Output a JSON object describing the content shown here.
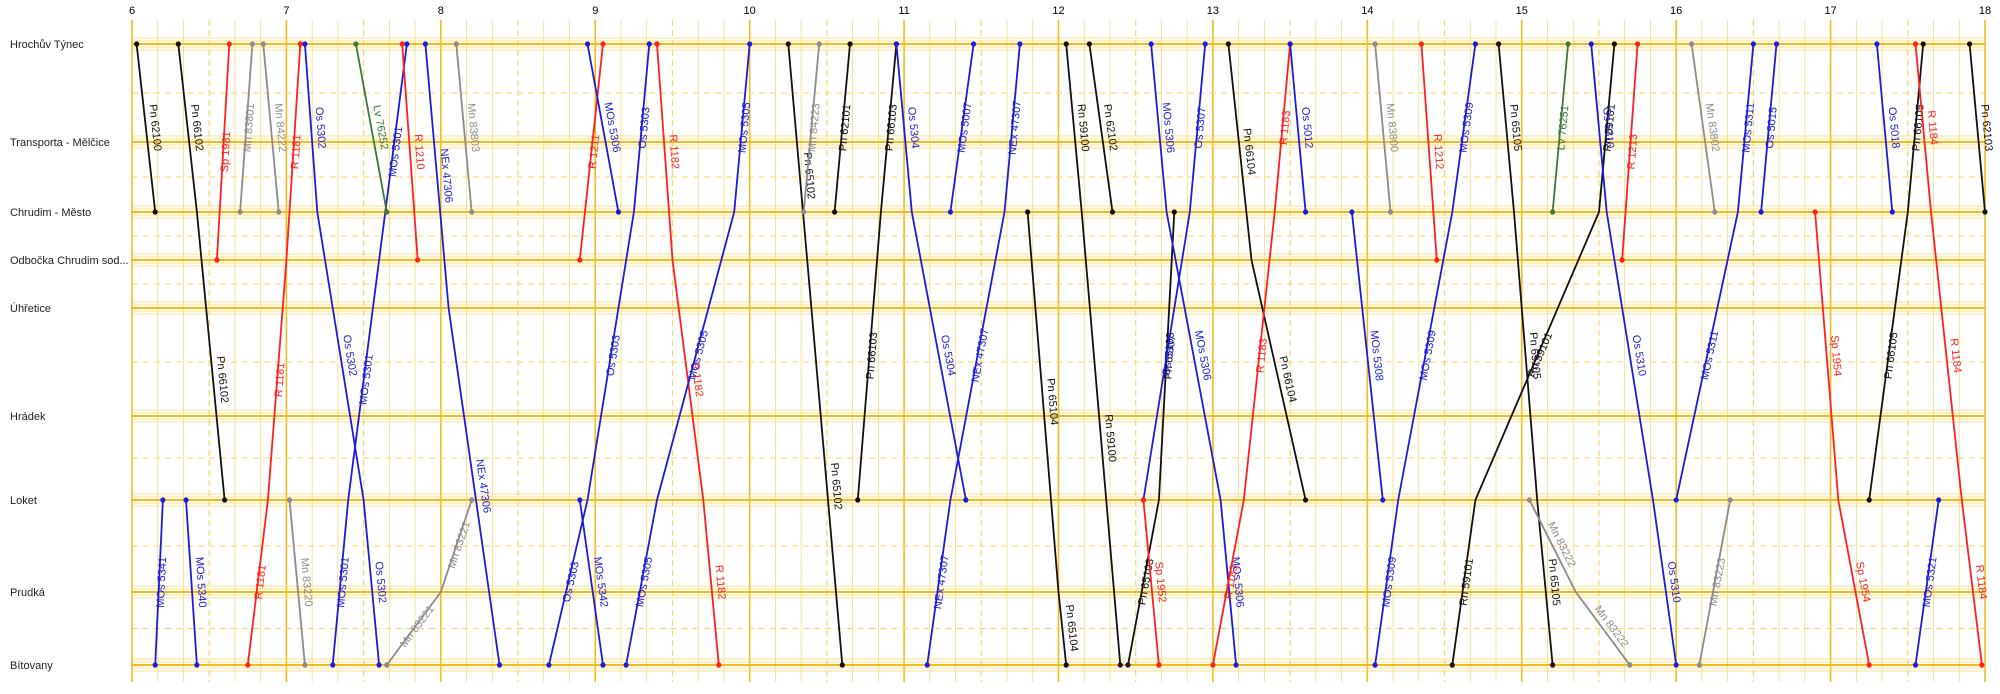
{
  "chart_data": {
    "type": "line",
    "title": "",
    "xlabel": "",
    "ylabel": "",
    "x_unit": "hour",
    "xlim": [
      6,
      18
    ],
    "hours": [
      "6",
      "7",
      "8",
      "9",
      "10",
      "11",
      "12",
      "13",
      "14",
      "15",
      "16",
      "17",
      "18"
    ],
    "stations": [
      {
        "name": "Hrochův Týnec",
        "km": 0
      },
      {
        "name": "Transporta - Mělčice",
        "km": 2.6
      },
      {
        "name": "Chrudim - Město",
        "km": 4.4
      },
      {
        "name": "Odbočka Chrudim sod...",
        "km": 5.6
      },
      {
        "name": "Úhřetice",
        "km": 6.8
      },
      {
        "name": "Hrádek",
        "km": 9.5
      },
      {
        "name": "Loket",
        "km": 11.6
      },
      {
        "name": "Prudká",
        "km": 14.0
      },
      {
        "name": "Bítovany",
        "km": 15.8
      }
    ],
    "colors": {
      "grid": "#f2bb1c",
      "grid_soft": "#f7d66a",
      "R": "#ff2020",
      "Sp": "#ff2020",
      "Os": "#1c1cdc",
      "MOs": "#1c1cdc",
      "NEx": "#1c1cdc",
      "Pn": "#111111",
      "Rn": "#111111",
      "Mn": "#8c8c8c",
      "Lv": "#3a7a3a"
    },
    "series": [
      {
        "name": "Pn 62100",
        "kind": "Pn",
        "points": [
          [
            6.03,
            0
          ],
          [
            6.15,
            4.4
          ]
        ]
      },
      {
        "name": "Pn 66102",
        "kind": "Pn",
        "points": [
          [
            6.3,
            0
          ],
          [
            6.42,
            4.4
          ],
          [
            6.45,
            5.6
          ],
          [
            6.6,
            11.6
          ]
        ]
      },
      {
        "name": "Sp 1981",
        "kind": "Sp",
        "points": [
          [
            6.55,
            5.6
          ],
          [
            6.63,
            0
          ]
        ]
      },
      {
        "name": "Mn 83801",
        "kind": "Mn",
        "points": [
          [
            6.7,
            4.4
          ],
          [
            6.78,
            0
          ]
        ]
      },
      {
        "name": "Mn 84222",
        "kind": "Mn",
        "points": [
          [
            6.85,
            0
          ],
          [
            6.95,
            4.4
          ]
        ]
      },
      {
        "name": "R 1181",
        "kind": "R",
        "points": [
          [
            6.75,
            15.8
          ],
          [
            6.88,
            11.6
          ],
          [
            7.0,
            5.6
          ],
          [
            7.09,
            0
          ]
        ]
      },
      {
        "name": "MOs 5341",
        "kind": "MOs",
        "points": [
          [
            6.15,
            15.8
          ],
          [
            6.2,
            11.6
          ]
        ]
      },
      {
        "name": "MOs 5340",
        "kind": "MOs",
        "points": [
          [
            6.35,
            11.6
          ],
          [
            6.42,
            15.8
          ]
        ]
      },
      {
        "name": "Mn 83220",
        "kind": "Mn",
        "points": [
          [
            7.02,
            11.6
          ],
          [
            7.12,
            15.8
          ]
        ]
      },
      {
        "name": "Os 5302",
        "kind": "Os",
        "points": [
          [
            7.12,
            0
          ],
          [
            7.2,
            4.4
          ],
          [
            7.5,
            11.6
          ],
          [
            7.6,
            15.8
          ]
        ]
      },
      {
        "name": "MOs 5301",
        "kind": "MOs",
        "points": [
          [
            7.3,
            15.8
          ],
          [
            7.4,
            11.6
          ],
          [
            7.6,
            5.6
          ],
          [
            7.78,
            0
          ]
        ]
      },
      {
        "name": "Lv 76252",
        "kind": "Lv",
        "points": [
          [
            7.45,
            0
          ],
          [
            7.65,
            4.4
          ]
        ]
      },
      {
        "name": "R 1210",
        "kind": "R",
        "points": [
          [
            7.75,
            0
          ],
          [
            7.85,
            5.6
          ]
        ]
      },
      {
        "name": "NEx 47306",
        "kind": "NEx",
        "points": [
          [
            7.9,
            0
          ],
          [
            8.05,
            6.8
          ],
          [
            8.38,
            15.8
          ]
        ]
      },
      {
        "name": "Mn 83803",
        "kind": "Mn",
        "points": [
          [
            8.1,
            0
          ],
          [
            8.2,
            4.4
          ]
        ]
      },
      {
        "name": "Mn 83221",
        "kind": "Mn",
        "points": [
          [
            7.65,
            15.8
          ],
          [
            8.0,
            14.0
          ],
          [
            8.2,
            11.6
          ]
        ]
      },
      {
        "name": "R 1211",
        "kind": "R",
        "points": [
          [
            8.9,
            5.6
          ],
          [
            9.05,
            0
          ]
        ]
      },
      {
        "name": "MOs 5306",
        "kind": "MOs",
        "points": [
          [
            8.95,
            0
          ],
          [
            9.15,
            4.4
          ]
        ]
      },
      {
        "name": "Os 5303",
        "kind": "Os",
        "points": [
          [
            8.7,
            15.8
          ],
          [
            8.95,
            11.6
          ],
          [
            9.25,
            4.4
          ],
          [
            9.35,
            0
          ]
        ]
      },
      {
        "name": "R 1182",
        "kind": "R",
        "points": [
          [
            9.4,
            0
          ],
          [
            9.5,
            5.6
          ],
          [
            9.7,
            11.6
          ],
          [
            9.8,
            15.8
          ]
        ]
      },
      {
        "name": "MOs 5342",
        "kind": "MOs",
        "points": [
          [
            8.9,
            11.6
          ],
          [
            9.05,
            15.8
          ]
        ]
      },
      {
        "name": "MOs 5305",
        "kind": "MOs",
        "points": [
          [
            9.2,
            15.8
          ],
          [
            9.4,
            11.6
          ],
          [
            9.9,
            4.4
          ],
          [
            10.0,
            0
          ]
        ]
      },
      {
        "name": "Pn 65102",
        "kind": "Pn",
        "points": [
          [
            10.25,
            0
          ],
          [
            10.4,
            6.8
          ],
          [
            10.6,
            15.8
          ]
        ]
      },
      {
        "name": "Mn 84223",
        "kind": "Mn",
        "points": [
          [
            10.35,
            4.4
          ],
          [
            10.45,
            0
          ]
        ]
      },
      {
        "name": "Pn 62101",
        "kind": "Pn",
        "points": [
          [
            10.55,
            4.4
          ],
          [
            10.65,
            0
          ]
        ]
      },
      {
        "name": "Pn 66103",
        "kind": "Pn",
        "points": [
          [
            10.7,
            11.6
          ],
          [
            10.85,
            4.4
          ],
          [
            10.95,
            0
          ]
        ]
      },
      {
        "name": "Os 5304",
        "kind": "Os",
        "points": [
          [
            10.95,
            0
          ],
          [
            11.05,
            4.4
          ],
          [
            11.4,
            11.6
          ]
        ]
      },
      {
        "name": "MOs 5007",
        "kind": "MOs",
        "points": [
          [
            11.3,
            4.4
          ],
          [
            11.45,
            0
          ]
        ]
      },
      {
        "name": "NEx 47307",
        "kind": "NEx",
        "points": [
          [
            11.15,
            15.8
          ],
          [
            11.3,
            11.6
          ],
          [
            11.65,
            4.4
          ],
          [
            11.75,
            0
          ]
        ]
      },
      {
        "name": "Pn 65104",
        "kind": "Pn",
        "points": [
          [
            11.8,
            4.4
          ],
          [
            12.0,
            14.0
          ],
          [
            12.05,
            15.8
          ]
        ]
      },
      {
        "name": "Pn 65103",
        "kind": "Pn",
        "points": [
          [
            12.45,
            15.8
          ],
          [
            12.65,
            11.6
          ],
          [
            12.75,
            4.4
          ]
        ]
      },
      {
        "name": "Rn 59100",
        "kind": "Rn",
        "points": [
          [
            12.05,
            0
          ],
          [
            12.15,
            4.4
          ],
          [
            12.4,
            15.8
          ]
        ]
      },
      {
        "name": "Pn 62102",
        "kind": "Pn",
        "points": [
          [
            12.2,
            0
          ],
          [
            12.35,
            4.4
          ]
        ]
      },
      {
        "name": "MOs 5306",
        "kind": "MOs",
        "points": [
          [
            12.6,
            0
          ],
          [
            12.7,
            4.4
          ],
          [
            13.05,
            11.6
          ],
          [
            13.15,
            15.8
          ]
        ]
      },
      {
        "name": "Os 5307",
        "kind": "Os",
        "points": [
          [
            12.55,
            11.6
          ],
          [
            12.85,
            4.4
          ],
          [
            12.95,
            0
          ]
        ]
      },
      {
        "name": "Sp 1952",
        "kind": "Sp",
        "points": [
          [
            12.55,
            11.6
          ],
          [
            12.65,
            15.8
          ]
        ]
      },
      {
        "name": "Pn 66104",
        "kind": "Pn",
        "points": [
          [
            13.1,
            0
          ],
          [
            13.25,
            5.6
          ],
          [
            13.6,
            11.6
          ]
        ]
      },
      {
        "name": "R 1183",
        "kind": "R",
        "points": [
          [
            13.0,
            15.8
          ],
          [
            13.2,
            11.6
          ],
          [
            13.4,
            4.4
          ],
          [
            13.5,
            0
          ]
        ]
      },
      {
        "name": "Os 5012",
        "kind": "Os",
        "points": [
          [
            13.5,
            0
          ],
          [
            13.6,
            4.4
          ]
        ]
      },
      {
        "name": "MOs 5308",
        "kind": "MOs",
        "points": [
          [
            13.9,
            4.4
          ],
          [
            14.1,
            11.6
          ]
        ]
      },
      {
        "name": "MOs 5309",
        "kind": "MOs",
        "points": [
          [
            14.05,
            15.8
          ],
          [
            14.2,
            11.6
          ],
          [
            14.55,
            4.4
          ],
          [
            14.7,
            0
          ]
        ]
      },
      {
        "name": "Mn 83800",
        "kind": "Mn",
        "points": [
          [
            14.05,
            0
          ],
          [
            14.15,
            4.4
          ]
        ]
      },
      {
        "name": "R 1212",
        "kind": "R",
        "points": [
          [
            14.35,
            0
          ],
          [
            14.45,
            5.6
          ]
        ]
      },
      {
        "name": "Pn 65105",
        "kind": "Pn",
        "points": [
          [
            14.85,
            0
          ],
          [
            14.95,
            4.4
          ],
          [
            15.1,
            11.6
          ],
          [
            15.2,
            15.8
          ]
        ]
      },
      {
        "name": "Rn 59101",
        "kind": "Rn",
        "points": [
          [
            14.55,
            15.8
          ],
          [
            14.7,
            11.6
          ],
          [
            15.5,
            4.4
          ],
          [
            15.6,
            0
          ]
        ]
      },
      {
        "name": "Lv 76251",
        "kind": "Lv",
        "points": [
          [
            15.2,
            4.4
          ],
          [
            15.3,
            0
          ]
        ]
      },
      {
        "name": "Os 5310",
        "kind": "Os",
        "points": [
          [
            15.45,
            0
          ],
          [
            15.55,
            4.4
          ],
          [
            15.85,
            11.6
          ],
          [
            16.0,
            15.8
          ]
        ]
      },
      {
        "name": "R 1213",
        "kind": "R",
        "points": [
          [
            15.65,
            5.6
          ],
          [
            15.75,
            0
          ]
        ]
      },
      {
        "name": "Mn 83222",
        "kind": "Mn",
        "points": [
          [
            15.05,
            11.6
          ],
          [
            15.35,
            14.0
          ],
          [
            15.7,
            15.8
          ]
        ]
      },
      {
        "name": "MOs 5311",
        "kind": "MOs",
        "points": [
          [
            16.0,
            11.6
          ],
          [
            16.4,
            4.4
          ],
          [
            16.5,
            0
          ]
        ]
      },
      {
        "name": "Mn 83802",
        "kind": "Mn",
        "points": [
          [
            16.1,
            0
          ],
          [
            16.25,
            4.4
          ]
        ]
      },
      {
        "name": "Mn 83223",
        "kind": "Mn",
        "points": [
          [
            16.15,
            15.8
          ],
          [
            16.35,
            11.6
          ]
        ]
      },
      {
        "name": "Os 5015",
        "kind": "Os",
        "points": [
          [
            16.55,
            4.4
          ],
          [
            16.65,
            0
          ]
        ]
      },
      {
        "name": "Sp 1954",
        "kind": "Sp",
        "points": [
          [
            16.9,
            4.4
          ],
          [
            17.05,
            11.6
          ],
          [
            17.25,
            15.8
          ]
        ]
      },
      {
        "name": "Os 5018",
        "kind": "Os",
        "points": [
          [
            17.3,
            0
          ],
          [
            17.4,
            4.4
          ]
        ]
      },
      {
        "name": "Pn 66105",
        "kind": "Pn",
        "points": [
          [
            17.25,
            11.6
          ],
          [
            17.5,
            4.4
          ],
          [
            17.6,
            0
          ]
        ]
      },
      {
        "name": "R 1184",
        "kind": "R",
        "points": [
          [
            17.55,
            0
          ],
          [
            17.65,
            4.4
          ],
          [
            17.85,
            11.6
          ],
          [
            17.98,
            15.8
          ]
        ]
      },
      {
        "name": "MOs 5321",
        "kind": "MOs",
        "points": [
          [
            17.55,
            15.8
          ],
          [
            17.7,
            11.6
          ]
        ]
      },
      {
        "name": "Pn 62103",
        "kind": "Pn",
        "points": [
          [
            17.9,
            0
          ],
          [
            18.0,
            4.4
          ]
        ]
      }
    ]
  }
}
